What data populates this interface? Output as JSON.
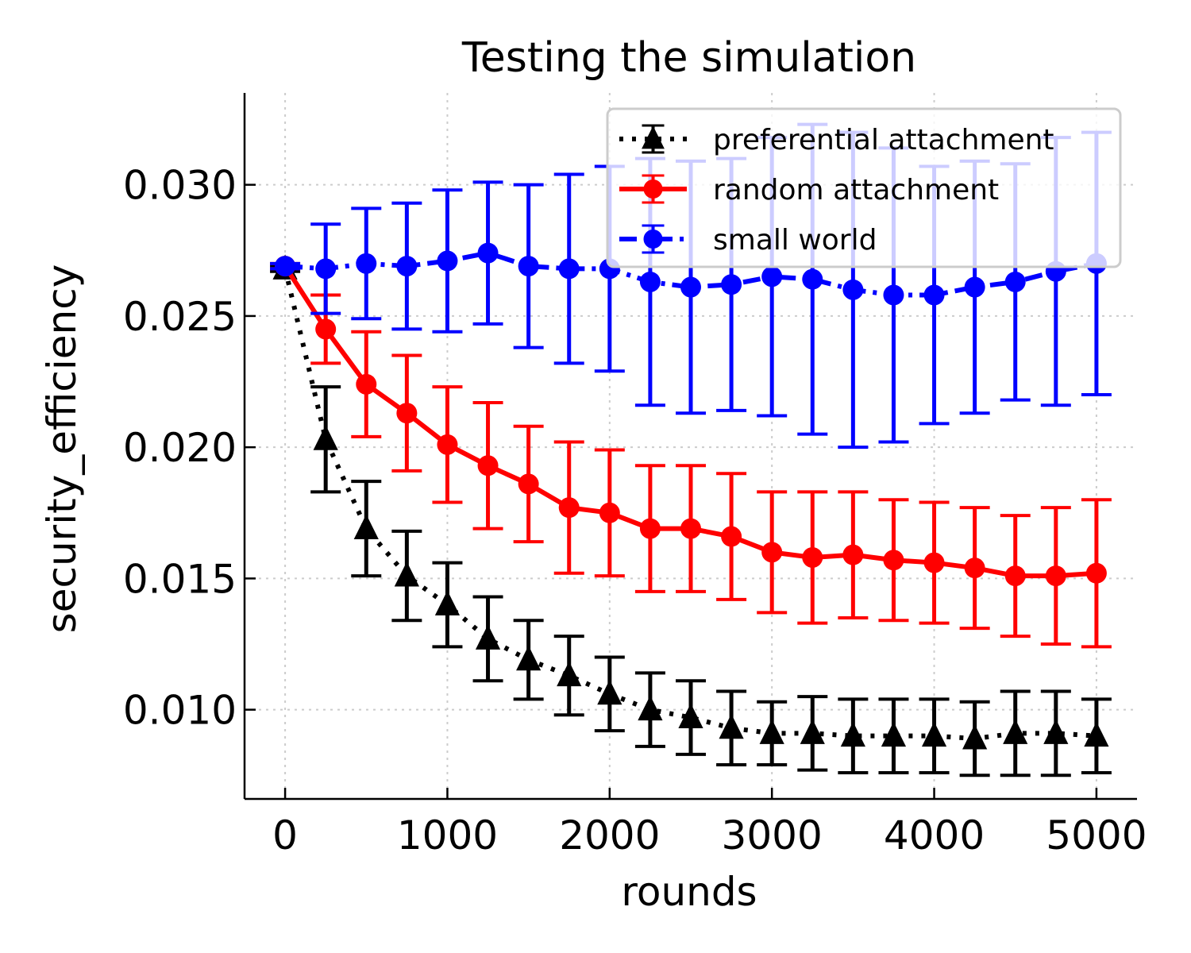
{
  "chart_data": {
    "type": "line",
    "title": "Testing the simulation",
    "xlabel": "rounds",
    "ylabel": "security_efficiency",
    "xlim": [
      -250,
      5250
    ],
    "ylim": [
      0.0066,
      0.0335
    ],
    "xticks": [
      0,
      1000,
      2000,
      3000,
      4000,
      5000
    ],
    "xtick_labels": [
      "0",
      "1000",
      "2000",
      "3000",
      "4000",
      "5000"
    ],
    "yticks": [
      0.01,
      0.015,
      0.02,
      0.025,
      0.03
    ],
    "ytick_labels": [
      "0.010",
      "0.015",
      "0.020",
      "0.025",
      "0.030"
    ],
    "grid": true,
    "legend_position": "top-right",
    "x": [
      0,
      250,
      500,
      750,
      1000,
      1250,
      1500,
      1750,
      2000,
      2250,
      2500,
      2750,
      3000,
      3250,
      3500,
      3750,
      4000,
      4250,
      4500,
      4750,
      5000
    ],
    "series": [
      {
        "name": "preferential attachment",
        "color": "#000000",
        "marker": "triangle",
        "linestyle": "dotted",
        "values": [
          0.0268,
          0.0203,
          0.0169,
          0.0151,
          0.014,
          0.0127,
          0.0119,
          0.0113,
          0.0106,
          0.01,
          0.0097,
          0.0093,
          0.0091,
          0.0091,
          0.009,
          0.009,
          0.009,
          0.0089,
          0.0091,
          0.0091,
          0.009
        ],
        "errors": [
          0.0001,
          0.002,
          0.0018,
          0.0017,
          0.0016,
          0.0016,
          0.0015,
          0.0015,
          0.0014,
          0.0014,
          0.0014,
          0.0014,
          0.0012,
          0.0014,
          0.0014,
          0.0014,
          0.0014,
          0.0014,
          0.0016,
          0.0016,
          0.0014
        ]
      },
      {
        "name": "random attachment",
        "color": "#ff0000",
        "marker": "circle",
        "linestyle": "solid",
        "values": [
          0.0269,
          0.0245,
          0.0224,
          0.0213,
          0.0201,
          0.0193,
          0.0186,
          0.0177,
          0.0175,
          0.0169,
          0.0169,
          0.0166,
          0.016,
          0.0158,
          0.0159,
          0.0157,
          0.0156,
          0.0154,
          0.0151,
          0.0151,
          0.0152
        ],
        "errors": [
          0.0001,
          0.0013,
          0.002,
          0.0022,
          0.0022,
          0.0024,
          0.0022,
          0.0025,
          0.0024,
          0.0024,
          0.0024,
          0.0024,
          0.0023,
          0.0025,
          0.0024,
          0.0023,
          0.0023,
          0.0023,
          0.0023,
          0.0026,
          0.0028
        ]
      },
      {
        "name": "small world",
        "color": "#0000ff",
        "marker": "circle",
        "linestyle": "dashdot",
        "values": [
          0.0269,
          0.0268,
          0.027,
          0.0269,
          0.0271,
          0.0274,
          0.0269,
          0.0268,
          0.0268,
          0.0263,
          0.0261,
          0.0262,
          0.0265,
          0.0264,
          0.026,
          0.0258,
          0.0258,
          0.0261,
          0.0263,
          0.0267,
          0.027
        ],
        "errors": [
          0.0001,
          0.0017,
          0.0021,
          0.0024,
          0.0027,
          0.0027,
          0.0031,
          0.0036,
          0.0039,
          0.0047,
          0.0048,
          0.0048,
          0.0053,
          0.0059,
          0.006,
          0.0056,
          0.0049,
          0.0048,
          0.0045,
          0.0051,
          0.005
        ]
      }
    ]
  }
}
